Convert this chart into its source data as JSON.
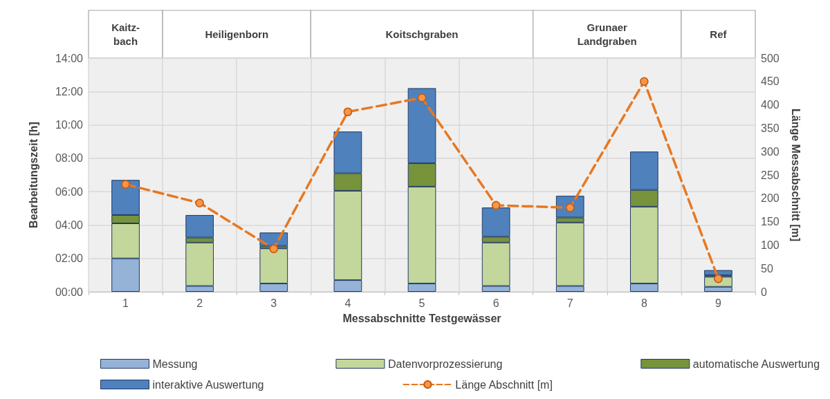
{
  "chart_data": {
    "type": "bar",
    "stacked": true,
    "xlabel": "Messabschnitte Testgewässer",
    "ylabel": "Bearbeitungszeit [h]",
    "y2label": "Länge Messabschnitt [m]",
    "categories": [
      "1",
      "2",
      "3",
      "4",
      "5",
      "6",
      "7",
      "8",
      "9"
    ],
    "series": [
      {
        "name": "Messung",
        "color": "#95b3d7",
        "values": [
          2.0,
          0.35,
          0.5,
          0.7,
          0.5,
          0.35,
          0.35,
          0.5,
          0.3
        ]
      },
      {
        "name": "Datenvorprozessierung",
        "color": "#c3d69b",
        "values": [
          2.1,
          2.6,
          2.1,
          5.35,
          5.8,
          2.6,
          3.8,
          4.6,
          0.6
        ]
      },
      {
        "name": "automatische Auswertung",
        "color": "#77933c",
        "values": [
          0.5,
          0.3,
          0.15,
          1.05,
          1.4,
          0.35,
          0.3,
          1.0,
          0.1
        ]
      },
      {
        "name": "interaktive Auswertung",
        "color": "#4f81bd",
        "values": [
          2.1,
          1.35,
          0.8,
          2.5,
          4.5,
          1.75,
          1.3,
          2.3,
          0.3
        ]
      },
      {
        "name": "Länge Abschnitt [m]",
        "type": "line",
        "axis": "y2",
        "color": "#e87722",
        "marker": "circle",
        "line_style": "dashed",
        "values": [
          230,
          190,
          92,
          385,
          415,
          185,
          180,
          450,
          28
        ]
      }
    ],
    "ylim": [
      0,
      14
    ],
    "yticks": [
      {
        "value": 0,
        "label": "00:00"
      },
      {
        "value": 2,
        "label": "02:00"
      },
      {
        "value": 4,
        "label": "04:00"
      },
      {
        "value": 6,
        "label": "06:00"
      },
      {
        "value": 8,
        "label": "08:00"
      },
      {
        "value": 10,
        "label": "10:00"
      },
      {
        "value": 12,
        "label": "12:00"
      },
      {
        "value": 14,
        "label": "14:00"
      }
    ],
    "y2lim": [
      0,
      500
    ],
    "y2ticks": [
      0,
      50,
      100,
      150,
      200,
      250,
      300,
      350,
      400,
      450,
      500
    ],
    "grid": true,
    "legend": "bottom",
    "annotations": [
      "Kaitz-\nbach",
      "Heiligenborn",
      "Koitschgraben",
      "Grunaer\nLandgraben",
      "Ref"
    ]
  }
}
